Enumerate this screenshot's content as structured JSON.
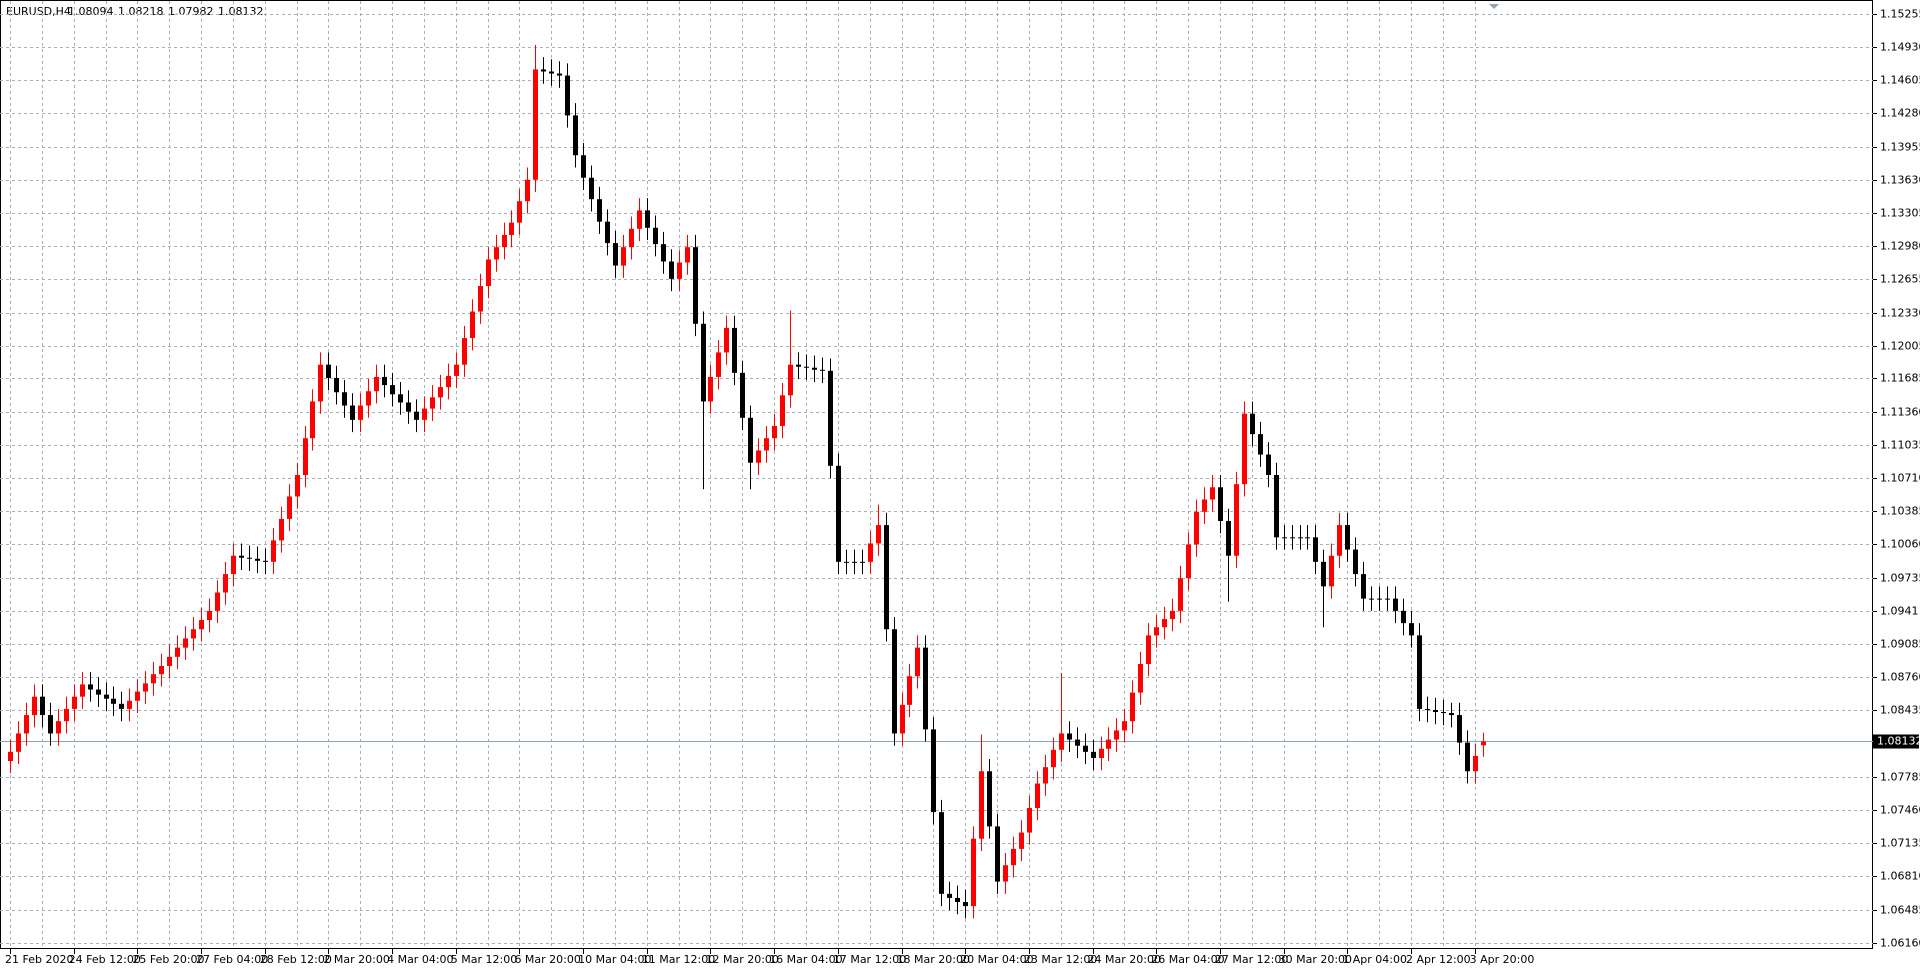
{
  "chart_data": {
    "type": "candlestick",
    "symbol": "EURUSD,H4",
    "header_ohlc": [
      1.08094,
      1.08218,
      1.07982,
      1.08132
    ],
    "current_price": 1.08132,
    "up_color": "#ff0000",
    "down_color": "#000000",
    "price_line_color": "#8ea3bb",
    "grid": true,
    "ylim": [
      1.061,
      1.1538
    ],
    "yticks": [
      1.15255,
      {
        "value": 1.1493,
        "label": "1.14930"
      },
      1.14605,
      {
        "value": 1.1428,
        "label": "1.14280"
      },
      1.13955,
      {
        "value": 1.1363,
        "label": "1.13630"
      },
      1.13305,
      {
        "value": 1.1298,
        "label": "1.12980"
      },
      1.12655,
      {
        "value": 1.1233,
        "label": "1.12330"
      },
      1.12005,
      1.11685,
      {
        "value": 1.1136,
        "label": "1.11360"
      },
      1.11035,
      {
        "value": 1.1071,
        "label": "1.10710"
      },
      1.10385,
      {
        "value": 1.1006,
        "label": "1.10060"
      },
      1.09735,
      1.0941,
      1.09085,
      {
        "value": 1.0876,
        "label": "1.08760"
      },
      1.08435,
      1.07785,
      {
        "value": 1.0746,
        "label": "1.07460"
      },
      1.07135,
      {
        "value": 1.0681,
        "label": "1.06810"
      },
      1.06485,
      {
        "value": 1.0616,
        "label": "1.06160"
      }
    ],
    "categories": [
      "21 Feb 2020",
      null,
      null,
      null,
      null,
      null,
      null,
      null,
      "24 Feb 12:00",
      null,
      null,
      null,
      null,
      null,
      null,
      null,
      "25 Feb 20:00",
      null,
      null,
      null,
      null,
      null,
      null,
      null,
      "27 Feb 04:00",
      null,
      null,
      null,
      null,
      null,
      null,
      null,
      "28 Feb 12:00",
      null,
      null,
      null,
      null,
      null,
      null,
      null,
      "2 Mar 20:00",
      null,
      null,
      null,
      null,
      null,
      null,
      null,
      "4 Mar 04:00",
      null,
      null,
      null,
      null,
      null,
      null,
      null,
      "5 Mar 12:00",
      null,
      null,
      null,
      null,
      null,
      null,
      null,
      "6 Mar 20:00",
      null,
      null,
      null,
      null,
      null,
      null,
      null,
      "10 Mar 04:00",
      null,
      null,
      null,
      null,
      null,
      null,
      null,
      "11 Mar 12:00",
      null,
      null,
      null,
      null,
      null,
      null,
      null,
      "12 Mar 20:00",
      null,
      null,
      null,
      null,
      null,
      null,
      null,
      "16 Mar 04:00",
      null,
      null,
      null,
      null,
      null,
      null,
      null,
      "17 Mar 12:00",
      null,
      null,
      null,
      null,
      null,
      null,
      null,
      "18 Mar 20:00",
      null,
      null,
      null,
      null,
      null,
      null,
      null,
      "20 Mar 04:00",
      null,
      null,
      null,
      null,
      null,
      null,
      null,
      "23 Mar 12:00",
      null,
      null,
      null,
      null,
      null,
      null,
      null,
      "24 Mar 20:00",
      null,
      null,
      null,
      null,
      null,
      null,
      null,
      "26 Mar 04:00",
      null,
      null,
      null,
      null,
      null,
      null,
      null,
      "27 Mar 12:00",
      null,
      null,
      null,
      null,
      null,
      null,
      null,
      "30 Mar 20:00",
      null,
      null,
      null,
      null,
      null,
      null,
      null,
      "1 Apr 04:00",
      null,
      null,
      null,
      null,
      null,
      null,
      null,
      "2 Apr 12:00",
      null,
      null,
      null,
      null,
      null,
      null,
      null,
      "3 Apr 20:00",
      null
    ],
    "open": [
      1.0794,
      1.0803,
      1.0821,
      1.0839,
      1.0857,
      1.0839,
      1.0821,
      1.0833,
      1.0845,
      1.0857,
      1.0869,
      1.0864,
      1.0859,
      1.0855,
      1.085,
      1.0845,
      1.0853,
      1.0862,
      1.087,
      1.0879,
      1.0887,
      1.0896,
      1.0905,
      1.0914,
      1.0923,
      1.0932,
      1.0941,
      1.0959,
      1.0977,
      1.0995,
      1.0993,
      1.0992,
      1.099,
      1.0989,
      1.101,
      1.1031,
      1.1053,
      1.1074,
      1.111,
      1.1146,
      1.1182,
      1.1169,
      1.1155,
      1.1142,
      1.1128,
      1.1142,
      1.1156,
      1.117,
      1.1162,
      1.1153,
      1.1145,
      1.1136,
      1.1128,
      1.1139,
      1.115,
      1.116,
      1.1171,
      1.1182,
      1.1208,
      1.1234,
      1.1259,
      1.1285,
      1.1297,
      1.1309,
      1.1321,
      1.1342,
      1.1363,
      1.1471,
      1.1469,
      1.1467,
      1.1465,
      1.1426,
      1.1387,
      1.1365,
      1.1344,
      1.1322,
      1.1301,
      1.1279,
      1.1297,
      1.1315,
      1.1333,
      1.1316,
      1.13,
      1.1283,
      1.1266,
      1.1282,
      1.1297,
      1.1222,
      1.1146,
      1.117,
      1.1194,
      1.1218,
      1.1174,
      1.113,
      1.1086,
      1.1098,
      1.111,
      1.1122,
      1.1152,
      1.1182,
      1.118,
      1.1179,
      1.1177,
      1.1176,
      1.1083,
      1.0989,
      1.0989,
      1.0989,
      1.0989,
      1.1007,
      1.1025,
      1.0923,
      1.0821,
      1.0849,
      1.0877,
      1.0905,
      1.0825,
      1.0744,
      1.0664,
      1.066,
      1.0656,
      1.0652,
      1.0718,
      1.0784,
      1.073,
      1.0676,
      1.0692,
      1.0708,
      1.0724,
      1.0748,
      1.0772,
      1.0788,
      1.0805,
      1.0821,
      1.0815,
      1.0809,
      1.0803,
      1.0797,
      1.0806,
      1.0815,
      1.0824,
      1.0833,
      1.0861,
      1.0889,
      1.0917,
      1.0925,
      1.0933,
      1.0941,
      1.0973,
      1.1006,
      1.1038,
      1.105,
      1.1062,
      1.1029,
      1.0995,
      1.1065,
      1.1134,
      1.1114,
      1.1094,
      1.1074,
      1.1013,
      1.1013,
      1.1013,
      1.1013,
      1.1013,
      1.0989,
      1.0965,
      1.0995,
      1.1025,
      1.1001,
      1.0977,
      1.0953,
      1.0953,
      1.0953,
      1.0953,
      1.0941,
      1.0929,
      1.0917,
      1.0845,
      1.0844,
      1.0842,
      1.0841,
      1.0839,
      1.0812,
      1.0784,
      1.08094
    ],
    "high": [
      1.0815,
      1.0833,
      1.0851,
      1.0869,
      1.0869,
      1.0851,
      1.0845,
      1.0857,
      1.0869,
      1.0881,
      1.0881,
      1.0876,
      1.0871,
      1.0867,
      1.0862,
      1.0865,
      1.0874,
      1.0882,
      1.0891,
      1.0899,
      1.0908,
      1.0917,
      1.0926,
      1.0935,
      1.0944,
      1.0953,
      1.0971,
      1.0989,
      1.1007,
      1.1007,
      1.1005,
      1.1004,
      1.1002,
      1.1022,
      1.1043,
      1.1065,
      1.1086,
      1.1122,
      1.1158,
      1.1194,
      1.1194,
      1.1181,
      1.1167,
      1.1154,
      1.1154,
      1.1168,
      1.1182,
      1.1182,
      1.1174,
      1.1165,
      1.1157,
      1.1148,
      1.1151,
      1.1162,
      1.1172,
      1.1183,
      1.1194,
      1.122,
      1.1246,
      1.1271,
      1.1297,
      1.1309,
      1.1321,
      1.1333,
      1.1354,
      1.1375,
      1.1495,
      1.1483,
      1.1481,
      1.1479,
      1.1477,
      1.1438,
      1.1399,
      1.1377,
      1.1356,
      1.1334,
      1.1313,
      1.1309,
      1.1327,
      1.1345,
      1.1345,
      1.1328,
      1.1312,
      1.1295,
      1.1294,
      1.1309,
      1.1309,
      1.1234,
      1.1182,
      1.1206,
      1.123,
      1.123,
      1.1186,
      1.1142,
      1.111,
      1.1122,
      1.1134,
      1.1164,
      1.1235,
      1.1194,
      1.1192,
      1.1191,
      1.1189,
      1.1188,
      1.1095,
      1.1001,
      1.1001,
      1.1001,
      1.1019,
      1.1045,
      1.1037,
      1.0935,
      1.0861,
      1.0889,
      1.0917,
      1.0917,
      1.0837,
      1.0756,
      1.0676,
      1.0672,
      1.0668,
      1.073,
      1.082,
      1.0796,
      1.0742,
      1.0704,
      1.072,
      1.0736,
      1.076,
      1.0784,
      1.08,
      1.0817,
      1.088,
      1.0833,
      1.0827,
      1.0821,
      1.0815,
      1.0818,
      1.0827,
      1.0836,
      1.0845,
      1.0873,
      1.0901,
      1.0929,
      1.0937,
      1.0945,
      1.0953,
      1.0985,
      1.1018,
      1.105,
      1.1062,
      1.1074,
      1.1074,
      1.1041,
      1.1077,
      1.1146,
      1.1146,
      1.1126,
      1.1106,
      1.1086,
      1.1025,
      1.1025,
      1.1025,
      1.1025,
      1.1025,
      1.1001,
      1.1007,
      1.1037,
      1.1037,
      1.1013,
      1.0989,
      1.0965,
      1.0965,
      1.0965,
      1.0965,
      1.0953,
      1.0941,
      1.0929,
      1.0857,
      1.0856,
      1.0854,
      1.0851,
      1.0851,
      1.0824,
      1.0811,
      1.08218
    ],
    "low": [
      1.0782,
      1.0791,
      1.0809,
      1.0827,
      1.0827,
      1.0809,
      1.0809,
      1.0821,
      1.0833,
      1.0845,
      1.0852,
      1.0847,
      1.0843,
      1.0838,
      1.0833,
      1.0833,
      1.0841,
      1.085,
      1.0858,
      1.0867,
      1.0875,
      1.0884,
      1.0893,
      1.0902,
      1.0911,
      1.092,
      1.0929,
      1.0947,
      1.0965,
      1.0981,
      1.098,
      1.0978,
      1.0977,
      1.0977,
      1.0998,
      1.1019,
      1.1041,
      1.1062,
      1.1098,
      1.1134,
      1.1157,
      1.1143,
      1.113,
      1.1116,
      1.1116,
      1.113,
      1.1144,
      1.115,
      1.1141,
      1.1133,
      1.1124,
      1.1116,
      1.1116,
      1.1127,
      1.1138,
      1.1148,
      1.1159,
      1.117,
      1.1196,
      1.1222,
      1.1247,
      1.1273,
      1.1285,
      1.1297,
      1.1309,
      1.133,
      1.1351,
      1.1457,
      1.1455,
      1.1453,
      1.1414,
      1.1375,
      1.1353,
      1.1332,
      1.131,
      1.1289,
      1.1267,
      1.1267,
      1.1285,
      1.1303,
      1.1304,
      1.1288,
      1.1271,
      1.1254,
      1.1254,
      1.127,
      1.121,
      1.106,
      1.1134,
      1.1158,
      1.1182,
      1.1162,
      1.1118,
      1.106,
      1.1074,
      1.1086,
      1.1098,
      1.111,
      1.114,
      1.1168,
      1.1167,
      1.1165,
      1.1164,
      1.1071,
      1.0977,
      1.0977,
      1.0977,
      1.0977,
      1.0977,
      1.0995,
      1.0911,
      1.0809,
      1.0809,
      1.0837,
      1.0865,
      1.0813,
      1.0732,
      1.0652,
      1.0648,
      1.0644,
      1.064,
      1.064,
      1.0706,
      1.0718,
      1.0664,
      1.0664,
      1.068,
      1.0696,
      1.0712,
      1.0736,
      1.076,
      1.0776,
      1.0793,
      1.0803,
      1.0797,
      1.0791,
      1.0785,
      1.0785,
      1.0794,
      1.0803,
      1.0812,
      1.0821,
      1.0849,
      1.0877,
      1.0905,
      1.0913,
      1.0921,
      1.0929,
      1.0961,
      1.0994,
      1.1026,
      1.1038,
      1.1017,
      1.095,
      1.0983,
      1.1053,
      1.1102,
      1.1082,
      1.1062,
      1.1001,
      1.1001,
      1.1001,
      1.1001,
      1.1001,
      1.0977,
      1.0925,
      1.0953,
      1.0983,
      1.0989,
      1.0965,
      1.0941,
      1.0941,
      1.0941,
      1.0941,
      1.0929,
      1.0917,
      1.0905,
      1.0833,
      1.0832,
      1.083,
      1.0829,
      1.0827,
      1.08,
      1.0772,
      1.0772,
      1.07982
    ],
    "close": [
      1.0803,
      1.0821,
      1.0839,
      1.0857,
      1.0839,
      1.0821,
      1.0833,
      1.0845,
      1.0857,
      1.0869,
      1.0864,
      1.0859,
      1.0855,
      1.085,
      1.0845,
      1.0853,
      1.0862,
      1.087,
      1.0879,
      1.0887,
      1.0896,
      1.0905,
      1.0914,
      1.0923,
      1.0932,
      1.0941,
      1.0959,
      1.0977,
      1.0995,
      1.0993,
      1.0992,
      1.099,
      1.0989,
      1.101,
      1.1031,
      1.1053,
      1.1074,
      1.111,
      1.1146,
      1.1182,
      1.1169,
      1.1155,
      1.1142,
      1.1128,
      1.1142,
      1.1156,
      1.117,
      1.1162,
      1.1153,
      1.1145,
      1.1136,
      1.1128,
      1.1139,
      1.115,
      1.116,
      1.1171,
      1.1182,
      1.1208,
      1.1234,
      1.1259,
      1.1285,
      1.1297,
      1.1309,
      1.1321,
      1.1342,
      1.1363,
      1.1471,
      1.1469,
      1.1467,
      1.1465,
      1.1426,
      1.1387,
      1.1365,
      1.1344,
      1.1322,
      1.1301,
      1.1279,
      1.1297,
      1.1315,
      1.1333,
      1.1316,
      1.13,
      1.1283,
      1.1266,
      1.1282,
      1.1297,
      1.1222,
      1.1146,
      1.117,
      1.1194,
      1.1218,
      1.1174,
      1.113,
      1.1086,
      1.1098,
      1.111,
      1.1122,
      1.1152,
      1.1182,
      1.118,
      1.1179,
      1.1177,
      1.1176,
      1.1083,
      1.0989,
      1.0989,
      1.0989,
      1.0989,
      1.1007,
      1.1025,
      1.0923,
      1.0821,
      1.0849,
      1.0877,
      1.0905,
      1.0825,
      1.0744,
      1.0664,
      1.066,
      1.0656,
      1.0652,
      1.0718,
      1.0784,
      1.073,
      1.0676,
      1.0692,
      1.0708,
      1.0724,
      1.0748,
      1.0772,
      1.0788,
      1.0805,
      1.0821,
      1.0815,
      1.0809,
      1.0803,
      1.0797,
      1.0806,
      1.0815,
      1.0824,
      1.0833,
      1.0861,
      1.0889,
      1.0917,
      1.0925,
      1.0933,
      1.0941,
      1.0973,
      1.1006,
      1.1038,
      1.105,
      1.1062,
      1.1029,
      1.0995,
      1.1065,
      1.1134,
      1.1114,
      1.1094,
      1.1074,
      1.1013,
      1.1013,
      1.1013,
      1.1013,
      1.1013,
      1.0989,
      1.0965,
      1.0995,
      1.1025,
      1.1001,
      1.0977,
      1.0953,
      1.0953,
      1.0953,
      1.0953,
      1.0941,
      1.0929,
      1.0917,
      1.0845,
      1.0844,
      1.0842,
      1.0841,
      1.0839,
      1.0812,
      1.0784,
      1.0799,
      1.08132
    ]
  }
}
